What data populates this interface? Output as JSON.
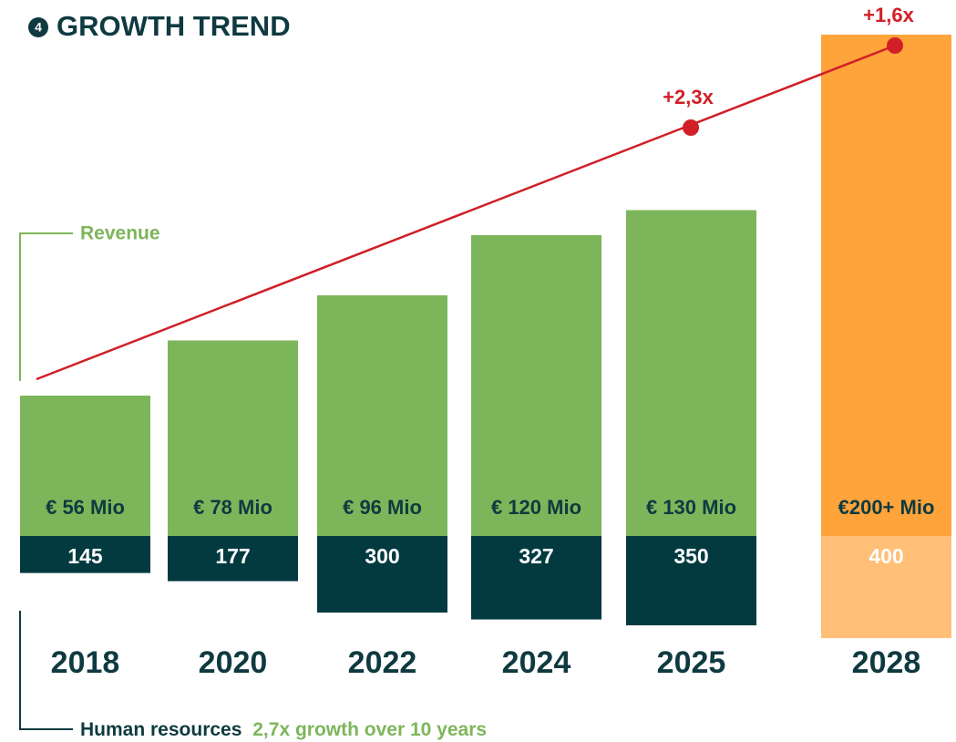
{
  "chart_data": {
    "type": "stacked-bar",
    "badge": "4",
    "title": "GROWTH TREND",
    "categories": [
      "2018",
      "2020",
      "2022",
      "2024",
      "2025",
      "2028"
    ],
    "series": [
      {
        "name": "Revenue",
        "colors": [
          "#7db65a",
          "#7db65a",
          "#7db65a",
          "#7db65a",
          "#7db65a",
          "#ffa33b"
        ],
        "values": [
          56,
          78,
          96,
          120,
          130,
          200
        ],
        "value_labels": [
          "€ 56 Mio",
          "€ 78 Mio",
          "€ 96 Mio",
          "€ 120 Mio",
          "€ 130 Mio",
          "€200+ Mio"
        ]
      },
      {
        "name": "Human resources",
        "colors": [
          "#023a40",
          "#023a40",
          "#023a40",
          "#023a40",
          "#023a40",
          "#ffbf77"
        ],
        "values": [
          145,
          177,
          300,
          327,
          350,
          400
        ]
      }
    ],
    "growth_note": "2,7x growth over 10 years",
    "annotations": [
      "+2,3x",
      "+1,6x"
    ]
  }
}
